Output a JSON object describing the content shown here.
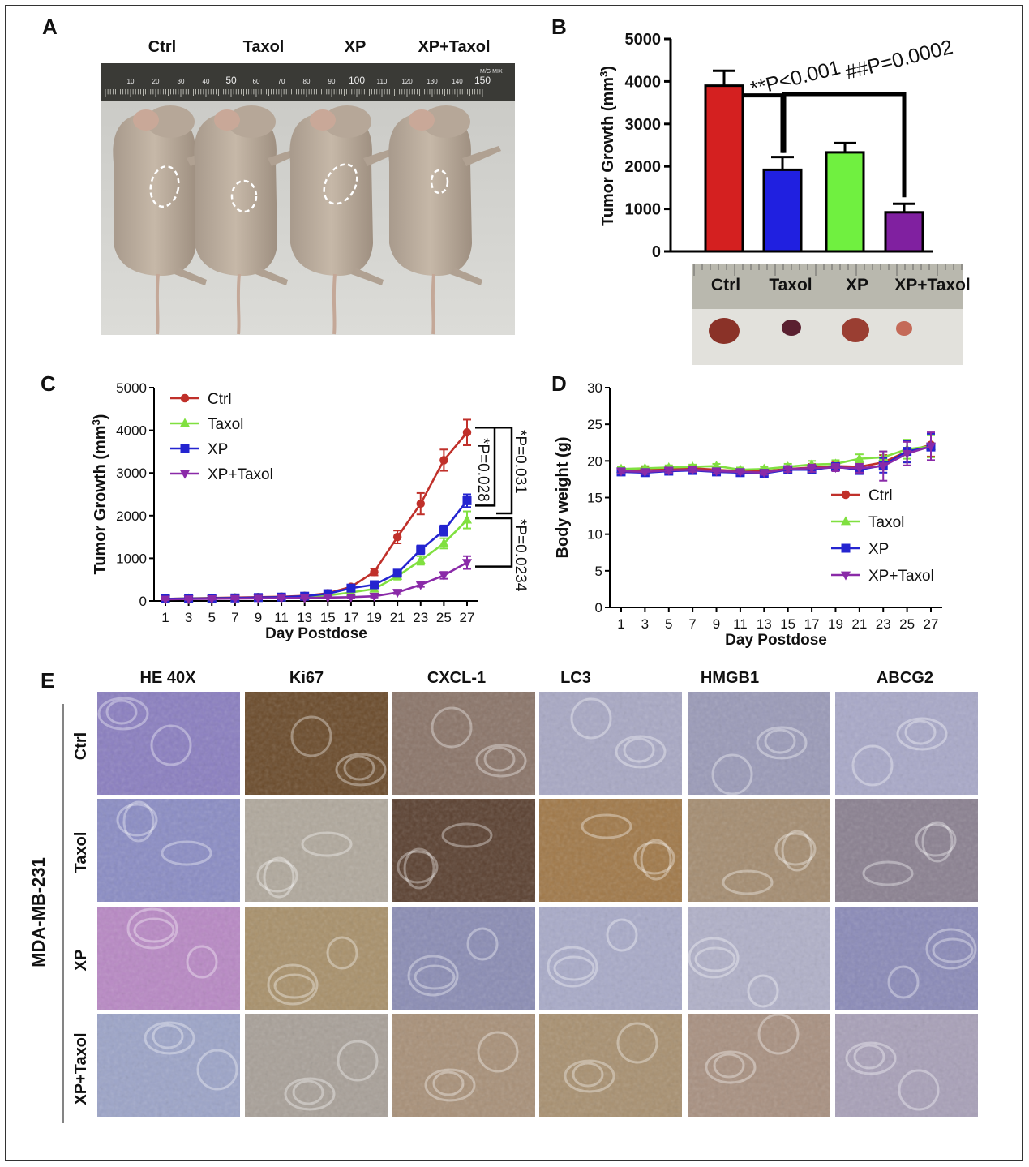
{
  "panels": {
    "A": {
      "letter": "A",
      "group_labels": [
        "Ctrl",
        "Taxol",
        "XP",
        "XP+Taxol"
      ],
      "ruler_ticks": [
        "10",
        "20",
        "30",
        "40",
        "50",
        "60",
        "70",
        "80",
        "90",
        "100",
        "110",
        "120",
        "130",
        "140",
        "150"
      ],
      "ruler_brand": "M/G MIX"
    },
    "B": {
      "letter": "B",
      "specimen_labels": [
        "Ctrl",
        "Taxol",
        "XP",
        "XP+Taxol"
      ]
    },
    "C": {
      "letter": "C"
    },
    "D": {
      "letter": "D"
    },
    "E": {
      "letter": "E",
      "cell_line": "MDA-MB-231",
      "stains": [
        "HE 40X",
        "Ki67",
        "CXCL-1",
        "LC3",
        "HMGB1",
        "ABCG2"
      ],
      "rows": [
        "Ctrl",
        "Taxol",
        "XP",
        "XP+Taxol"
      ]
    }
  },
  "colors": {
    "ctrl": "#d42020",
    "taxol": "#2020e0",
    "xp": "#70f040",
    "xp_taxol": "#8020a0",
    "line_ctrl": "#c0302a",
    "line_taxol": "#80e040",
    "line_xp": "#2424d0",
    "line_xp_taxol": "#8a2aa8"
  },
  "chart_data": [
    {
      "id": "B",
      "type": "bar",
      "categories": [
        "Ctrl",
        "Taxol",
        "XP",
        "XP+Taxol"
      ],
      "values": [
        3900,
        1920,
        2330,
        920
      ],
      "errors": [
        350,
        300,
        220,
        200
      ],
      "ylabel": "Tumor Growth (mm3)",
      "yticks": [
        "0",
        "1000",
        "2000",
        "3000",
        "4000",
        "5000"
      ],
      "ylim": [
        0,
        5000
      ],
      "annotations": [
        "**P<0.001",
        "##P=0.0002"
      ]
    },
    {
      "id": "C",
      "type": "line",
      "xlabel": "Day Postdose",
      "ylabel": "Tumor Growth (mm3)",
      "x": [
        1,
        3,
        5,
        7,
        9,
        11,
        13,
        15,
        17,
        19,
        21,
        23,
        25,
        27
      ],
      "xticks": [
        "1",
        "3",
        "5",
        "7",
        "9",
        "11",
        "13",
        "15",
        "17",
        "19",
        "21",
        "23",
        "25",
        "27"
      ],
      "yticks": [
        "0",
        "1000",
        "2000",
        "3000",
        "4000",
        "5000"
      ],
      "ylim": [
        0,
        5000
      ],
      "legend": "top-left",
      "series": [
        {
          "name": "Ctrl",
          "marker": "circle",
          "values": [
            50,
            60,
            70,
            80,
            90,
            100,
            120,
            180,
            330,
            680,
            1500,
            2280,
            3300,
            3950
          ],
          "errors": [
            20,
            20,
            20,
            20,
            20,
            20,
            30,
            40,
            50,
            80,
            150,
            250,
            250,
            300
          ]
        },
        {
          "name": "Taxol",
          "marker": "triangle-up",
          "values": [
            50,
            55,
            60,
            65,
            70,
            80,
            100,
            130,
            200,
            280,
            580,
            950,
            1350,
            1900
          ],
          "errors": [
            20,
            20,
            20,
            20,
            20,
            20,
            20,
            30,
            40,
            50,
            80,
            100,
            120,
            200
          ]
        },
        {
          "name": "XP",
          "marker": "square",
          "values": [
            50,
            55,
            60,
            70,
            80,
            90,
            110,
            170,
            300,
            380,
            650,
            1200,
            1650,
            2350
          ],
          "errors": [
            20,
            20,
            20,
            20,
            20,
            20,
            30,
            40,
            50,
            60,
            80,
            100,
            120,
            150
          ]
        },
        {
          "name": "XP+Taxol",
          "marker": "triangle-down",
          "values": [
            40,
            45,
            50,
            55,
            60,
            65,
            70,
            80,
            90,
            110,
            200,
            380,
            600,
            900
          ],
          "errors": [
            20,
            20,
            20,
            20,
            20,
            20,
            20,
            20,
            20,
            30,
            40,
            50,
            80,
            150
          ]
        }
      ],
      "annotations": [
        "*P=0.028",
        "*P=0.031",
        "*P=0.0234"
      ]
    },
    {
      "id": "D",
      "type": "line",
      "xlabel": "Day Postdose",
      "ylabel": "Body weight (g)",
      "x": [
        1,
        3,
        5,
        7,
        9,
        11,
        13,
        15,
        17,
        19,
        21,
        23,
        25,
        27
      ],
      "xticks": [
        "1",
        "3",
        "5",
        "7",
        "9",
        "11",
        "13",
        "15",
        "17",
        "19",
        "21",
        "23",
        "25",
        "27"
      ],
      "yticks": [
        "0",
        "5",
        "10",
        "15",
        "20",
        "25",
        "30"
      ],
      "ylim": [
        0,
        30
      ],
      "legend": "right",
      "series": [
        {
          "name": "Ctrl",
          "marker": "circle",
          "values": [
            18.7,
            18.8,
            18.9,
            19.0,
            18.8,
            18.6,
            18.6,
            18.9,
            19.1,
            19.3,
            19.2,
            19.8,
            21.3,
            22.2
          ],
          "errors": [
            0.3,
            0.3,
            0.3,
            0.3,
            0.3,
            0.3,
            0.3,
            0.4,
            0.5,
            0.5,
            0.6,
            1.0,
            1.5,
            1.6
          ]
        },
        {
          "name": "Taxol",
          "marker": "triangle-up",
          "values": [
            18.9,
            19.0,
            19.1,
            19.2,
            19.3,
            18.8,
            18.9,
            19.2,
            19.5,
            19.6,
            20.3,
            20.5,
            21.6,
            22.0
          ],
          "errors": [
            0.3,
            0.3,
            0.3,
            0.3,
            0.3,
            0.3,
            0.3,
            0.4,
            0.5,
            0.5,
            0.6,
            0.8,
            1.3,
            1.5
          ]
        },
        {
          "name": "XP",
          "marker": "square",
          "values": [
            18.5,
            18.4,
            18.6,
            18.7,
            18.5,
            18.4,
            18.3,
            18.8,
            18.8,
            19.2,
            18.8,
            19.4,
            21.3,
            21.9
          ],
          "errors": [
            0.3,
            0.3,
            0.3,
            0.3,
            0.3,
            0.3,
            0.3,
            0.4,
            0.5,
            0.5,
            0.6,
            1.0,
            1.5,
            1.8
          ]
        },
        {
          "name": "XP+Taxol",
          "marker": "triangle-down",
          "values": [
            18.6,
            18.5,
            18.7,
            18.8,
            18.6,
            18.5,
            18.4,
            18.9,
            19.0,
            19.1,
            19.0,
            19.3,
            21.0,
            22.0
          ],
          "errors": [
            0.3,
            0.3,
            0.3,
            0.3,
            0.3,
            0.3,
            0.3,
            0.4,
            0.5,
            0.5,
            0.6,
            2.0,
            1.6,
            1.9
          ]
        }
      ]
    }
  ]
}
